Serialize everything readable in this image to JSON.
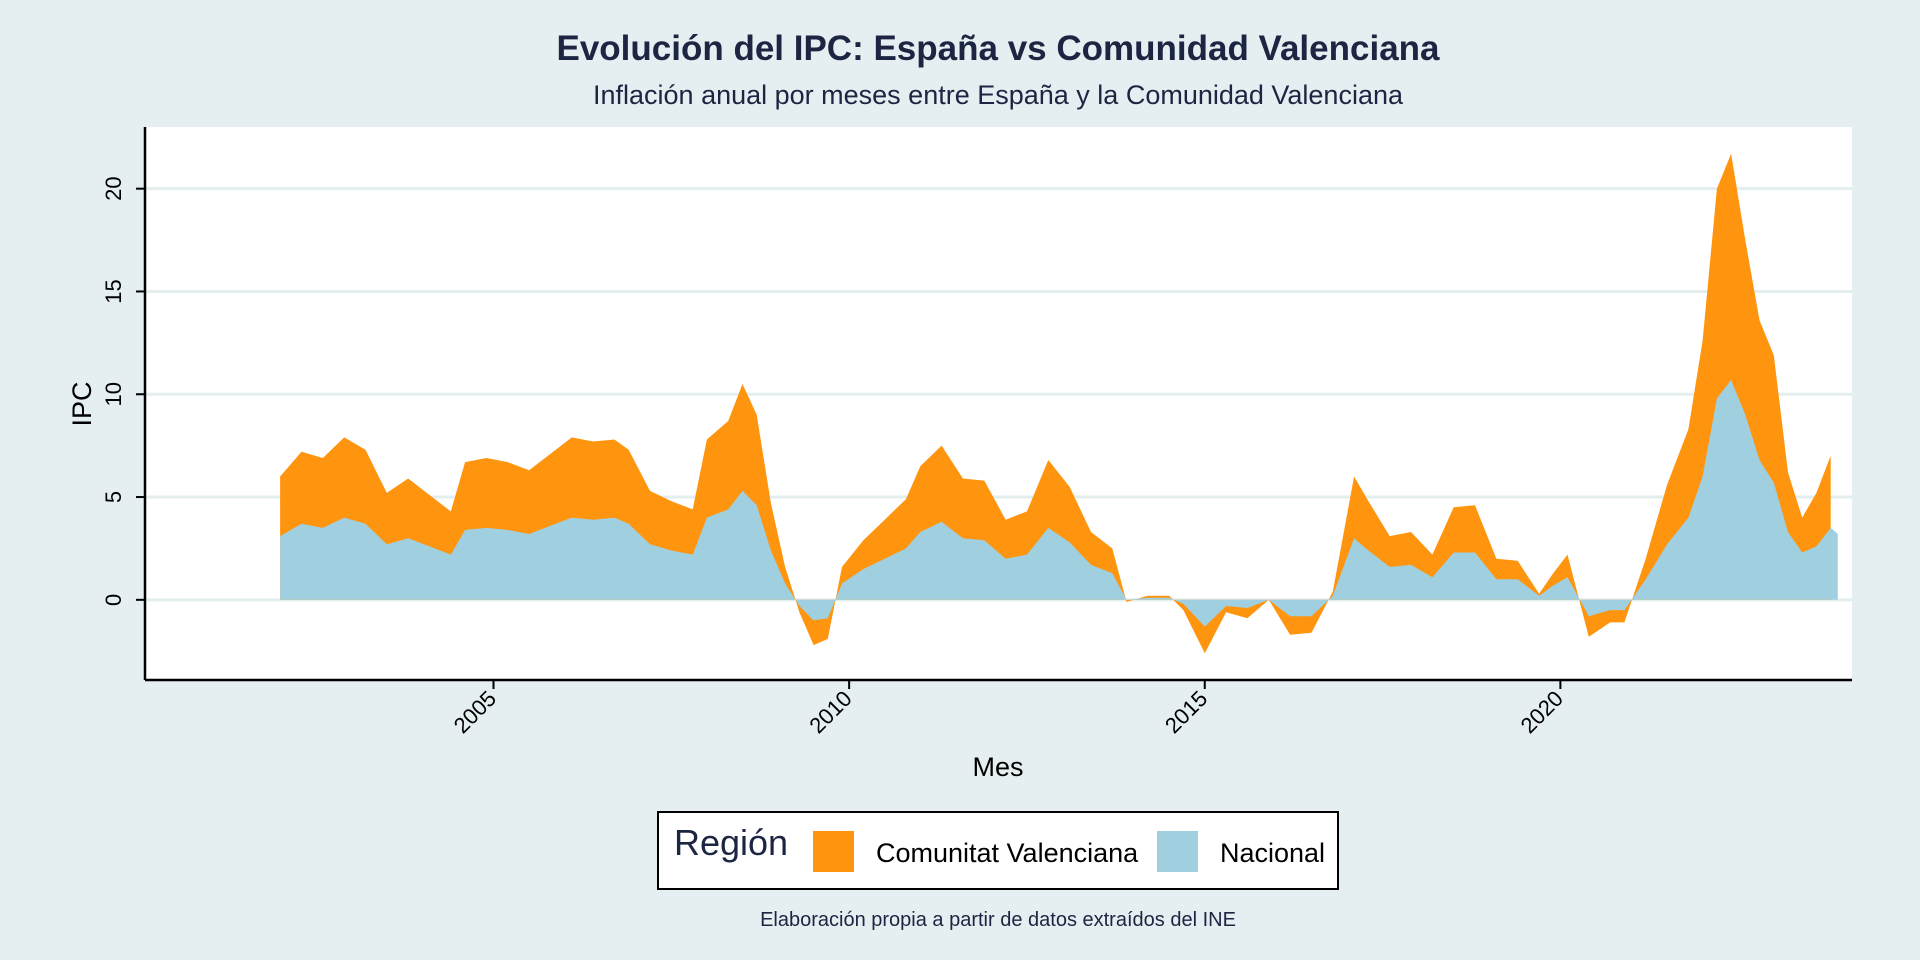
{
  "chart_data": {
    "type": "area",
    "title": "Evolución del IPC: España vs Comunidad Valenciana",
    "subtitle": "Inflación anual por meses entre España y la Comunidad Valenciana",
    "xlabel": "Mes",
    "ylabel": "IPC",
    "caption": "Elaboración propia a partir de datos extraídos del INE",
    "stacked": true,
    "xlim": [
      2000.1,
      2024.1
    ],
    "ylim": [
      -3.9,
      23.0
    ],
    "x_ticks": [
      2005,
      2010,
      2015,
      2020
    ],
    "y_ticks": [
      0,
      5,
      10,
      15,
      20
    ],
    "grid": "horizontal",
    "legend": {
      "title": "Región",
      "position": "bottom",
      "entries": [
        {
          "label": "Comunitat Valenciana",
          "color": "#ff940e"
        },
        {
          "label": "Nacional",
          "color": "#a0cfe0"
        }
      ]
    },
    "series": [
      {
        "name": "Nacional",
        "color": "#a0cfe0",
        "points": [
          [
            2002.0,
            3.1
          ],
          [
            2002.3,
            3.7
          ],
          [
            2002.6,
            3.5
          ],
          [
            2002.9,
            4.0
          ],
          [
            2003.2,
            3.7
          ],
          [
            2003.5,
            2.7
          ],
          [
            2003.8,
            3.0
          ],
          [
            2004.1,
            2.6
          ],
          [
            2004.4,
            2.2
          ],
          [
            2004.6,
            3.4
          ],
          [
            2004.9,
            3.5
          ],
          [
            2005.2,
            3.4
          ],
          [
            2005.5,
            3.2
          ],
          [
            2005.8,
            3.6
          ],
          [
            2006.1,
            4.0
          ],
          [
            2006.4,
            3.9
          ],
          [
            2006.7,
            4.0
          ],
          [
            2006.9,
            3.7
          ],
          [
            2007.2,
            2.7
          ],
          [
            2007.5,
            2.4
          ],
          [
            2007.8,
            2.2
          ],
          [
            2008.0,
            4.0
          ],
          [
            2008.3,
            4.4
          ],
          [
            2008.5,
            5.3
          ],
          [
            2008.7,
            4.6
          ],
          [
            2008.9,
            2.4
          ],
          [
            2009.1,
            0.8
          ],
          [
            2009.3,
            -0.3
          ],
          [
            2009.5,
            -1.0
          ],
          [
            2009.7,
            -0.9
          ],
          [
            2009.9,
            0.8
          ],
          [
            2010.2,
            1.5
          ],
          [
            2010.5,
            2.0
          ],
          [
            2010.8,
            2.5
          ],
          [
            2011.0,
            3.3
          ],
          [
            2011.3,
            3.8
          ],
          [
            2011.6,
            3.0
          ],
          [
            2011.9,
            2.9
          ],
          [
            2012.2,
            2.0
          ],
          [
            2012.5,
            2.2
          ],
          [
            2012.8,
            3.5
          ],
          [
            2013.1,
            2.8
          ],
          [
            2013.4,
            1.7
          ],
          [
            2013.7,
            1.3
          ],
          [
            2013.9,
            0.0
          ],
          [
            2014.2,
            0.1
          ],
          [
            2014.5,
            0.1
          ],
          [
            2014.7,
            -0.2
          ],
          [
            2015.0,
            -1.3
          ],
          [
            2015.3,
            -0.3
          ],
          [
            2015.6,
            -0.4
          ],
          [
            2015.9,
            0.0
          ],
          [
            2016.2,
            -0.8
          ],
          [
            2016.5,
            -0.8
          ],
          [
            2016.8,
            0.2
          ],
          [
            2017.1,
            3.0
          ],
          [
            2017.3,
            2.4
          ],
          [
            2017.6,
            1.6
          ],
          [
            2017.9,
            1.7
          ],
          [
            2018.2,
            1.1
          ],
          [
            2018.5,
            2.3
          ],
          [
            2018.8,
            2.3
          ],
          [
            2019.1,
            1.0
          ],
          [
            2019.4,
            1.0
          ],
          [
            2019.7,
            0.2
          ],
          [
            2019.9,
            0.7
          ],
          [
            2020.1,
            1.1
          ],
          [
            2020.4,
            -0.8
          ],
          [
            2020.7,
            -0.5
          ],
          [
            2020.9,
            -0.5
          ],
          [
            2021.2,
            1.0
          ],
          [
            2021.5,
            2.7
          ],
          [
            2021.8,
            4.0
          ],
          [
            2022.0,
            6.0
          ],
          [
            2022.2,
            9.8
          ],
          [
            2022.4,
            10.7
          ],
          [
            2022.6,
            9.0
          ],
          [
            2022.8,
            6.8
          ],
          [
            2023.0,
            5.7
          ],
          [
            2023.2,
            3.3
          ],
          [
            2023.4,
            2.3
          ],
          [
            2023.6,
            2.6
          ],
          [
            2023.8,
            3.5
          ],
          [
            2023.9,
            3.2
          ]
        ]
      },
      {
        "name": "Comunitat Valenciana",
        "color": "#ff940e",
        "points": [
          [
            2002.0,
            2.9
          ],
          [
            2002.3,
            3.5
          ],
          [
            2002.6,
            3.4
          ],
          [
            2002.9,
            3.9
          ],
          [
            2003.2,
            3.6
          ],
          [
            2003.5,
            2.5
          ],
          [
            2003.8,
            2.9
          ],
          [
            2004.1,
            2.5
          ],
          [
            2004.4,
            2.1
          ],
          [
            2004.6,
            3.3
          ],
          [
            2004.9,
            3.4
          ],
          [
            2005.2,
            3.3
          ],
          [
            2005.5,
            3.1
          ],
          [
            2005.8,
            3.5
          ],
          [
            2006.1,
            3.9
          ],
          [
            2006.4,
            3.8
          ],
          [
            2006.7,
            3.8
          ],
          [
            2006.9,
            3.6
          ],
          [
            2007.2,
            2.6
          ],
          [
            2007.5,
            2.4
          ],
          [
            2007.8,
            2.2
          ],
          [
            2008.0,
            3.8
          ],
          [
            2008.3,
            4.3
          ],
          [
            2008.5,
            5.2
          ],
          [
            2008.7,
            4.4
          ],
          [
            2008.9,
            2.3
          ],
          [
            2009.1,
            0.8
          ],
          [
            2009.3,
            -0.3
          ],
          [
            2009.5,
            -1.2
          ],
          [
            2009.7,
            -1.0
          ],
          [
            2009.9,
            0.8
          ],
          [
            2010.2,
            1.4
          ],
          [
            2010.5,
            1.9
          ],
          [
            2010.8,
            2.4
          ],
          [
            2011.0,
            3.2
          ],
          [
            2011.3,
            3.7
          ],
          [
            2011.6,
            2.9
          ],
          [
            2011.9,
            2.9
          ],
          [
            2012.2,
            1.9
          ],
          [
            2012.5,
            2.1
          ],
          [
            2012.8,
            3.3
          ],
          [
            2013.1,
            2.7
          ],
          [
            2013.4,
            1.6
          ],
          [
            2013.7,
            1.2
          ],
          [
            2013.9,
            -0.1
          ],
          [
            2014.2,
            0.1
          ],
          [
            2014.5,
            0.1
          ],
          [
            2014.7,
            -0.3
          ],
          [
            2015.0,
            -1.3
          ],
          [
            2015.3,
            -0.3
          ],
          [
            2015.6,
            -0.5
          ],
          [
            2015.9,
            0.0
          ],
          [
            2016.2,
            -0.9
          ],
          [
            2016.5,
            -0.8
          ],
          [
            2016.8,
            0.2
          ],
          [
            2017.1,
            3.0
          ],
          [
            2017.3,
            2.4
          ],
          [
            2017.6,
            1.5
          ],
          [
            2017.9,
            1.6
          ],
          [
            2018.2,
            1.1
          ],
          [
            2018.5,
            2.2
          ],
          [
            2018.8,
            2.3
          ],
          [
            2019.1,
            1.0
          ],
          [
            2019.4,
            0.9
          ],
          [
            2019.7,
            0.1
          ],
          [
            2019.9,
            0.6
          ],
          [
            2020.1,
            1.1
          ],
          [
            2020.4,
            -1.0
          ],
          [
            2020.7,
            -0.6
          ],
          [
            2020.9,
            -0.6
          ],
          [
            2021.2,
            1.0
          ],
          [
            2021.5,
            2.9
          ],
          [
            2021.8,
            4.3
          ],
          [
            2022.0,
            6.6
          ],
          [
            2022.2,
            10.2
          ],
          [
            2022.4,
            11.0
          ],
          [
            2022.6,
            8.5
          ],
          [
            2022.8,
            6.8
          ],
          [
            2023.0,
            6.2
          ],
          [
            2023.2,
            2.9
          ],
          [
            2023.4,
            1.7
          ],
          [
            2023.6,
            2.6
          ],
          [
            2023.8,
            3.5
          ]
        ]
      }
    ]
  }
}
